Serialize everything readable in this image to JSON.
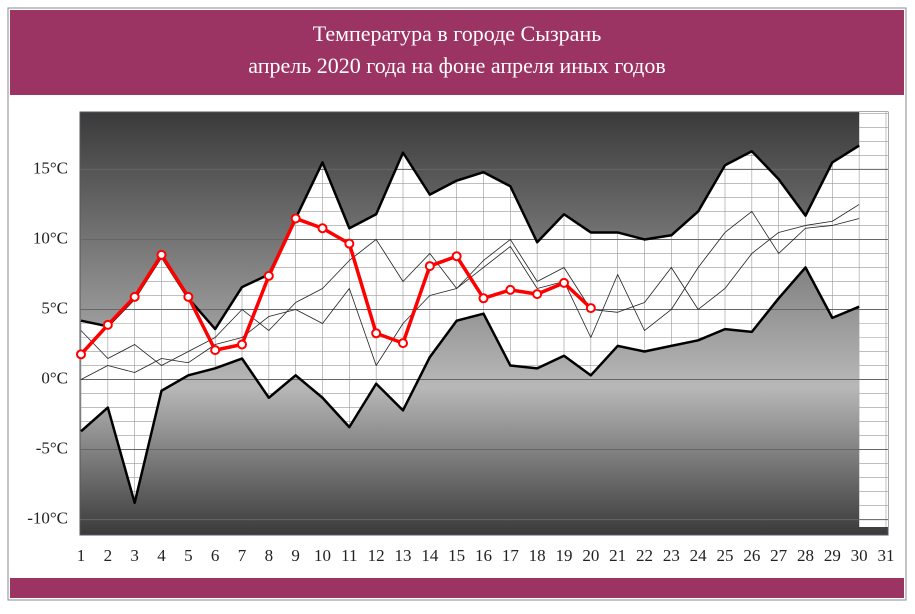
{
  "chart_data": {
    "type": "line",
    "title": "Температура в городе Сызрань",
    "subtitle": "апрель 2020 года на фоне апреля иных годов",
    "x": [
      1,
      2,
      3,
      4,
      5,
      6,
      7,
      8,
      9,
      10,
      11,
      12,
      13,
      14,
      15,
      16,
      17,
      18,
      19,
      20,
      21,
      22,
      23,
      24,
      25,
      26,
      27,
      28,
      29,
      30
    ],
    "xlim": [
      1,
      31
    ],
    "xticks": [
      1,
      2,
      3,
      4,
      5,
      6,
      7,
      8,
      9,
      10,
      11,
      12,
      13,
      14,
      15,
      16,
      17,
      18,
      19,
      20,
      21,
      22,
      23,
      24,
      25,
      26,
      27,
      28,
      29,
      30,
      31
    ],
    "ylim": [
      -11.1,
      19.1
    ],
    "yticks": [
      {
        "value": -10,
        "label": "-10°C"
      },
      {
        "value": -5,
        "label": "-5°C"
      },
      {
        "value": 0,
        "label": "0°C"
      },
      {
        "value": 5,
        "label": "5°C"
      },
      {
        "value": 10,
        "label": "10°C"
      },
      {
        "value": 15,
        "label": "15°C"
      }
    ],
    "grid": true,
    "series": [
      {
        "color": "#000000",
        "values": [
          4.2,
          3.8,
          5.8,
          8.8,
          5.8,
          3.6,
          6.6,
          7.5,
          11.5,
          15.5,
          10.8,
          11.8,
          16.2,
          13.2,
          14.2,
          14.8,
          13.8,
          9.8,
          11.8,
          10.5,
          10.5,
          10.0,
          10.3,
          12.0,
          15.3,
          16.3,
          14.3,
          11.7,
          15.5,
          16.7
        ]
      },
      {
        "color": "#000000",
        "values": [
          -3.7,
          -2.0,
          -8.8,
          -0.8,
          0.3,
          0.8,
          1.5,
          -1.3,
          0.3,
          -1.3,
          -3.4,
          -0.3,
          -2.2,
          1.6,
          4.2,
          4.7,
          1.0,
          0.8,
          1.7,
          0.3,
          2.4,
          2.0,
          2.4,
          2.8,
          3.6,
          3.4,
          5.8,
          8.0,
          4.4,
          5.2
        ]
      },
      {
        "color": "#222222",
        "values": [
          3.5,
          1.5,
          2.5,
          1.0,
          2.0,
          3.0,
          5.0,
          3.5,
          5.5,
          6.5,
          8.5,
          10.0,
          7.0,
          9.0,
          6.5,
          8.5,
          10.0,
          7.0,
          8.0,
          5.0,
          4.8,
          5.5,
          8.0,
          5.0,
          6.5,
          9.0,
          10.5,
          11.0,
          11.3,
          12.5
        ]
      },
      {
        "color": "#222222",
        "values": [
          0.0,
          1.0,
          0.5,
          1.5,
          1.2,
          2.5,
          3.0,
          4.5,
          5.0,
          4.0,
          6.5,
          1.0,
          4.0,
          6.0,
          6.5,
          8.0,
          9.5,
          6.5,
          7.0,
          3.0,
          7.5,
          3.5,
          5.0,
          8.0,
          10.5,
          12.0,
          9.0,
          10.8,
          11.0,
          11.5
        ]
      },
      {
        "color": "#ff0000",
        "values": [
          1.8,
          3.9,
          5.9,
          8.9,
          5.9,
          2.1,
          2.5,
          7.4,
          11.5,
          10.8,
          9.7,
          3.3,
          2.6,
          8.1,
          8.8,
          5.8,
          6.4,
          6.1,
          6.9,
          5.1,
          null,
          null,
          null,
          null,
          null,
          null,
          null,
          null,
          null,
          null
        ]
      }
    ]
  }
}
